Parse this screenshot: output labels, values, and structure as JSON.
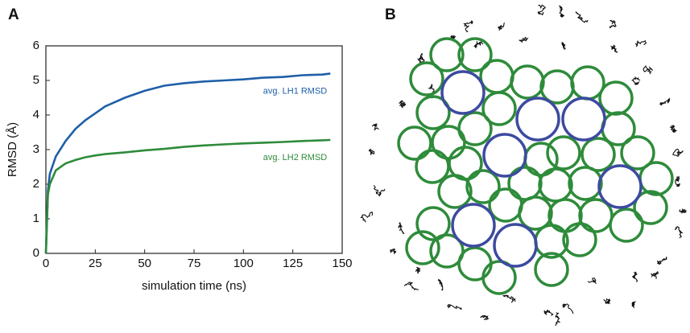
{
  "chart_data": {
    "type": "line",
    "panel_labels": [
      "A",
      "B"
    ],
    "x_label": "simulation time (ns)",
    "y_label": "RMSD (Å)",
    "x": [
      0,
      1,
      2,
      5,
      10,
      15,
      20,
      25,
      30,
      40,
      50,
      60,
      70,
      80,
      90,
      100,
      110,
      120,
      130,
      140,
      144
    ],
    "series": [
      {
        "name": "avg. LH1 RMSD",
        "color": "#1f5fa8",
        "values": [
          0,
          1.8,
          2.3,
          2.8,
          3.25,
          3.6,
          3.85,
          4.05,
          4.25,
          4.5,
          4.7,
          4.85,
          4.92,
          4.97,
          5.0,
          5.03,
          5.08,
          5.1,
          5.15,
          5.17,
          5.2
        ]
      },
      {
        "name": "avg. LH2 RMSD",
        "color": "#2e8b3a",
        "values": [
          0,
          1.7,
          2.0,
          2.4,
          2.6,
          2.7,
          2.78,
          2.83,
          2.87,
          2.92,
          2.98,
          3.02,
          3.08,
          3.12,
          3.15,
          3.18,
          3.2,
          3.22,
          3.25,
          3.27,
          3.28
        ]
      }
    ],
    "xlim": [
      0,
      150
    ],
    "xticks": [
      0,
      25,
      50,
      75,
      100,
      125,
      150
    ],
    "ylim": [
      0,
      6
    ],
    "yticks": [
      0,
      1,
      2,
      3,
      4,
      5,
      6
    ]
  }
}
